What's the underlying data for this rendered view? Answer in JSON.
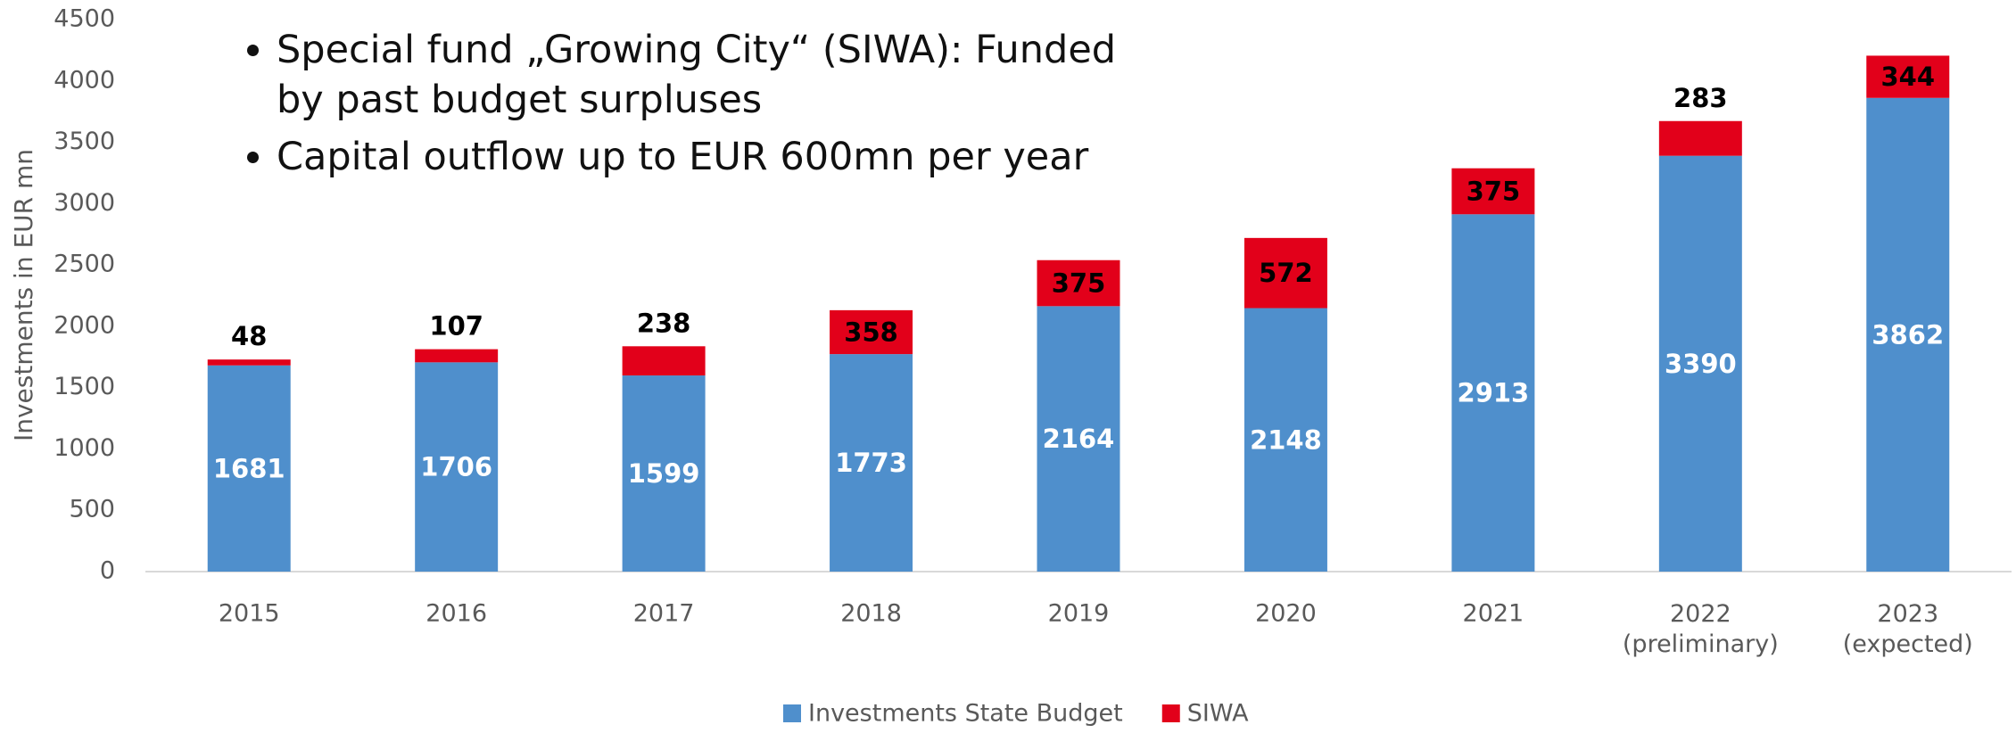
{
  "chart_data": {
    "type": "stacked_bar",
    "y_label": "Investments in EUR mn",
    "annotations": [
      "Special fund „Growing City“ (SIWA): Funded by past budget surpluses",
      "Capital outflow up to EUR 600mn per year"
    ],
    "categories": [
      "2015",
      "2016",
      "2017",
      "2018",
      "2019",
      "2020",
      "2021",
      "2022\n(preliminary)",
      "2023\n(expected)"
    ],
    "series": [
      {
        "name": "Investments State Budget",
        "color": "#4f8fcc",
        "values": [
          1681,
          1706,
          1599,
          1773,
          2164,
          2148,
          2913,
          3390,
          3862
        ]
      },
      {
        "name": "SIWA",
        "color": "#e2001a",
        "values": [
          48,
          107,
          238,
          358,
          375,
          572,
          375,
          283,
          344
        ]
      }
    ],
    "ylim": [
      0,
      4500
    ],
    "yticks": [
      0,
      500,
      1000,
      1500,
      2000,
      2500,
      3000,
      3500,
      4000,
      4500
    ],
    "grid": false,
    "legend": "bottom"
  }
}
